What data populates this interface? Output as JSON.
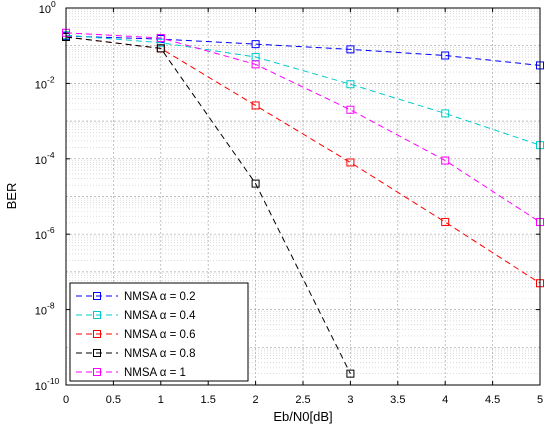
{
  "chart_data": {
    "type": "line",
    "title": "",
    "xlabel": "Eb/N0[dB]",
    "ylabel": "BER",
    "xlim": [
      0,
      5
    ],
    "ylim_exp": [
      -10,
      0
    ],
    "yscale": "log",
    "grid": true,
    "legend_position": "bottom-left",
    "x_ticks": [
      "0",
      "0.5",
      "1",
      "1.5",
      "2",
      "2.5",
      "3",
      "3.5",
      "4",
      "4.5",
      "5"
    ],
    "y_tick_exponents": [
      "0",
      "-2",
      "-4",
      "-6",
      "-8",
      "-10"
    ],
    "series": [
      {
        "name": "NMSA α  = 0.2",
        "color": "#0000ff",
        "x": [
          0,
          1,
          2,
          3,
          4,
          5
        ],
        "y": [
          0.18,
          0.15,
          0.11,
          0.08,
          0.055,
          0.03
        ]
      },
      {
        "name": "NMSA α  = 0.4",
        "color": "#00cccc",
        "x": [
          0,
          1,
          2,
          3,
          4,
          5
        ],
        "y": [
          0.19,
          0.12,
          0.05,
          0.0095,
          0.0016,
          0.00023
        ]
      },
      {
        "name": "NMSA α  = 0.6",
        "color": "#ff0000",
        "x": [
          0,
          1,
          2,
          3,
          4,
          5
        ],
        "y": [
          0.17,
          0.085,
          0.0026,
          8e-05,
          2.1e-06,
          5e-08
        ]
      },
      {
        "name": "NMSA α  = 0.8",
        "color": "#000000",
        "x": [
          0,
          1,
          2,
          3
        ],
        "y": [
          0.17,
          0.085,
          2.2e-05,
          2e-10
        ]
      },
      {
        "name": "NMSA α  = 1",
        "color": "#ff00ff",
        "x": [
          0,
          1,
          2,
          3,
          4,
          5
        ],
        "y": [
          0.22,
          0.16,
          0.032,
          0.002,
          9e-05,
          2.1e-06
        ]
      }
    ]
  }
}
